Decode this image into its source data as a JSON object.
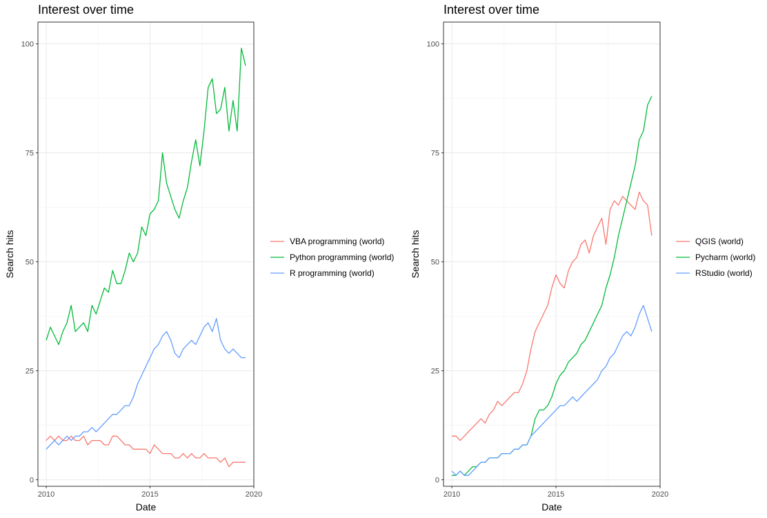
{
  "chart_data": [
    {
      "type": "line",
      "title": "Interest over time",
      "xlabel": "Date",
      "ylabel": "Search hits",
      "xlim": [
        2009.6,
        2020.0
      ],
      "ylim": [
        -1.5,
        105
      ],
      "x_ticks": [
        2010,
        2015,
        2020
      ],
      "y_ticks": [
        0,
        25,
        50,
        75,
        100
      ],
      "x_tick_labels": [
        "2010",
        "2015",
        "2020"
      ],
      "y_tick_labels": [
        "0",
        "25",
        "50",
        "75",
        "100"
      ],
      "grid": true,
      "legend_position": "right",
      "series": [
        {
          "name": " VBA programming (world)",
          "color": "#F8766D",
          "x": [
            2010.0,
            2010.2,
            2010.4,
            2010.6,
            2010.8,
            2011.0,
            2011.2,
            2011.4,
            2011.6,
            2011.8,
            2012.0,
            2012.2,
            2012.4,
            2012.6,
            2012.8,
            2013.0,
            2013.2,
            2013.4,
            2013.6,
            2013.8,
            2014.0,
            2014.2,
            2014.4,
            2014.6,
            2014.8,
            2015.0,
            2015.2,
            2015.4,
            2015.6,
            2015.8,
            2016.0,
            2016.2,
            2016.4,
            2016.6,
            2016.8,
            2017.0,
            2017.2,
            2017.4,
            2017.6,
            2017.8,
            2018.0,
            2018.2,
            2018.4,
            2018.6,
            2018.8,
            2019.0,
            2019.2,
            2019.4,
            2019.6
          ],
          "y": [
            9,
            10,
            9,
            10,
            9,
            9,
            10,
            9,
            9,
            10,
            8,
            9,
            9,
            9,
            8,
            8,
            10,
            10,
            9,
            8,
            8,
            7,
            7,
            7,
            7,
            6,
            8,
            7,
            6,
            6,
            6,
            5,
            5,
            6,
            5,
            6,
            5,
            5,
            6,
            5,
            5,
            5,
            4,
            5,
            3,
            4,
            4,
            4,
            4
          ]
        },
        {
          "name": "Python programming (world)",
          "color": "#00BA38",
          "x": [
            2010.0,
            2010.2,
            2010.4,
            2010.6,
            2010.8,
            2011.0,
            2011.2,
            2011.4,
            2011.6,
            2011.8,
            2012.0,
            2012.2,
            2012.4,
            2012.6,
            2012.8,
            2013.0,
            2013.2,
            2013.4,
            2013.6,
            2013.8,
            2014.0,
            2014.2,
            2014.4,
            2014.6,
            2014.8,
            2015.0,
            2015.2,
            2015.4,
            2015.6,
            2015.8,
            2016.0,
            2016.2,
            2016.4,
            2016.6,
            2016.8,
            2017.0,
            2017.2,
            2017.4,
            2017.6,
            2017.8,
            2018.0,
            2018.2,
            2018.4,
            2018.6,
            2018.8,
            2019.0,
            2019.2,
            2019.4,
            2019.6
          ],
          "y": [
            32,
            35,
            33,
            31,
            34,
            36,
            40,
            34,
            35,
            36,
            34,
            40,
            38,
            41,
            44,
            43,
            48,
            45,
            45,
            48,
            52,
            50,
            52,
            58,
            56,
            61,
            62,
            64,
            75,
            68,
            65,
            62,
            60,
            64,
            67,
            73,
            78,
            72,
            80,
            90,
            92,
            84,
            85,
            90,
            80,
            87,
            80,
            99,
            95
          ]
        },
        {
          "name": "R programming (world)",
          "color": "#619CFF",
          "x": [
            2010.0,
            2010.2,
            2010.4,
            2010.6,
            2010.8,
            2011.0,
            2011.2,
            2011.4,
            2011.6,
            2011.8,
            2012.0,
            2012.2,
            2012.4,
            2012.6,
            2012.8,
            2013.0,
            2013.2,
            2013.4,
            2013.6,
            2013.8,
            2014.0,
            2014.2,
            2014.4,
            2014.6,
            2014.8,
            2015.0,
            2015.2,
            2015.4,
            2015.6,
            2015.8,
            2016.0,
            2016.2,
            2016.4,
            2016.6,
            2016.8,
            2017.0,
            2017.2,
            2017.4,
            2017.6,
            2017.8,
            2018.0,
            2018.2,
            2018.4,
            2018.6,
            2018.8,
            2019.0,
            2019.2,
            2019.4,
            2019.6
          ],
          "y": [
            7,
            8,
            9,
            8,
            9,
            10,
            9,
            10,
            10,
            11,
            11,
            12,
            11,
            12,
            13,
            14,
            15,
            15,
            16,
            17,
            17,
            19,
            22,
            24,
            26,
            28,
            30,
            31,
            33,
            34,
            32,
            29,
            28,
            30,
            31,
            32,
            31,
            33,
            35,
            36,
            34,
            37,
            32,
            30,
            29,
            30,
            29,
            28,
            28
          ]
        }
      ]
    },
    {
      "type": "line",
      "title": "Interest over time",
      "xlabel": "Date",
      "ylabel": "Search hits",
      "xlim": [
        2009.6,
        2020.0
      ],
      "ylim": [
        -1.5,
        105
      ],
      "x_ticks": [
        2010,
        2015,
        2020
      ],
      "y_ticks": [
        0,
        25,
        50,
        75,
        100
      ],
      "x_tick_labels": [
        "2010",
        "2015",
        "2020"
      ],
      "y_tick_labels": [
        "0",
        "25",
        "50",
        "75",
        "100"
      ],
      "grid": true,
      "legend_position": "right",
      "series": [
        {
          "name": " QGIS (world)",
          "color": "#F8766D",
          "x": [
            2010.0,
            2010.2,
            2010.4,
            2010.6,
            2010.8,
            2011.0,
            2011.2,
            2011.4,
            2011.6,
            2011.8,
            2012.0,
            2012.2,
            2012.4,
            2012.6,
            2012.8,
            2013.0,
            2013.2,
            2013.4,
            2013.6,
            2013.8,
            2014.0,
            2014.2,
            2014.4,
            2014.6,
            2014.8,
            2015.0,
            2015.2,
            2015.4,
            2015.6,
            2015.8,
            2016.0,
            2016.2,
            2016.4,
            2016.6,
            2016.8,
            2017.0,
            2017.2,
            2017.4,
            2017.6,
            2017.8,
            2018.0,
            2018.2,
            2018.4,
            2018.6,
            2018.8,
            2019.0,
            2019.2,
            2019.4,
            2019.6
          ],
          "y": [
            10,
            10,
            9,
            10,
            11,
            12,
            13,
            14,
            13,
            15,
            16,
            18,
            17,
            18,
            19,
            20,
            20,
            22,
            25,
            30,
            34,
            36,
            38,
            40,
            44,
            47,
            45,
            44,
            48,
            50,
            51,
            54,
            55,
            52,
            56,
            58,
            60,
            54,
            62,
            64,
            63,
            65,
            64,
            63,
            62,
            66,
            64,
            63,
            56
          ]
        },
        {
          "name": "Pycharm (world)",
          "color": "#00BA38",
          "x": [
            2010.0,
            2010.2,
            2010.4,
            2010.6,
            2010.8,
            2011.0,
            2011.2,
            2011.4,
            2011.6,
            2011.8,
            2012.0,
            2012.2,
            2012.4,
            2012.6,
            2012.8,
            2013.0,
            2013.2,
            2013.4,
            2013.6,
            2013.8,
            2014.0,
            2014.2,
            2014.4,
            2014.6,
            2014.8,
            2015.0,
            2015.2,
            2015.4,
            2015.6,
            2015.8,
            2016.0,
            2016.2,
            2016.4,
            2016.6,
            2016.8,
            2017.0,
            2017.2,
            2017.4,
            2017.6,
            2017.8,
            2018.0,
            2018.2,
            2018.4,
            2018.6,
            2018.8,
            2019.0,
            2019.2,
            2019.4,
            2019.6
          ],
          "y": [
            1,
            1,
            2,
            1,
            2,
            3,
            3,
            4,
            4,
            5,
            5,
            5,
            6,
            6,
            6,
            7,
            7,
            8,
            8,
            10,
            14,
            16,
            16,
            17,
            19,
            22,
            24,
            25,
            27,
            28,
            29,
            31,
            32,
            34,
            36,
            38,
            40,
            44,
            47,
            51,
            56,
            60,
            64,
            68,
            72,
            78,
            80,
            86,
            88
          ]
        },
        {
          "name": "RStudio (world)",
          "color": "#619CFF",
          "x": [
            2010.0,
            2010.2,
            2010.4,
            2010.6,
            2010.8,
            2011.0,
            2011.2,
            2011.4,
            2011.6,
            2011.8,
            2012.0,
            2012.2,
            2012.4,
            2012.6,
            2012.8,
            2013.0,
            2013.2,
            2013.4,
            2013.6,
            2013.8,
            2014.0,
            2014.2,
            2014.4,
            2014.6,
            2014.8,
            2015.0,
            2015.2,
            2015.4,
            2015.6,
            2015.8,
            2016.0,
            2016.2,
            2016.4,
            2016.6,
            2016.8,
            2017.0,
            2017.2,
            2017.4,
            2017.6,
            2017.8,
            2018.0,
            2018.2,
            2018.4,
            2018.6,
            2018.8,
            2019.0,
            2019.2,
            2019.4,
            2019.6
          ],
          "y": [
            2,
            1,
            2,
            1,
            1,
            2,
            3,
            4,
            4,
            5,
            5,
            5,
            6,
            6,
            6,
            7,
            7,
            8,
            8,
            10,
            11,
            12,
            13,
            14,
            15,
            16,
            17,
            17,
            18,
            19,
            18,
            19,
            20,
            21,
            22,
            23,
            25,
            26,
            28,
            29,
            31,
            33,
            34,
            33,
            35,
            38,
            40,
            37,
            34
          ]
        }
      ]
    }
  ]
}
